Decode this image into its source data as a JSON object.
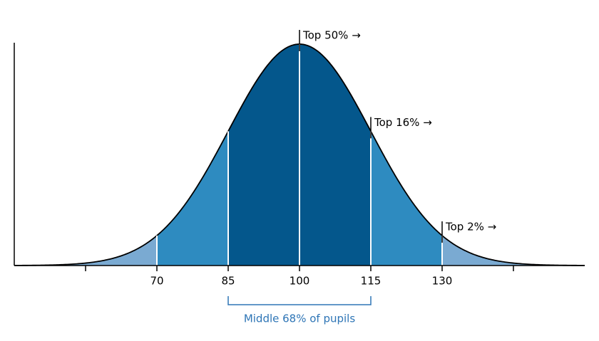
{
  "chart_data": {
    "type": "normal-curve",
    "xlim": [
      40,
      160
    ],
    "xticks": [
      70,
      85,
      100,
      115,
      130
    ],
    "minor_xticks": [
      55,
      145
    ],
    "band_colors": [
      "#7aaad2",
      "#2e8bc0",
      "#04578c",
      "#04578c",
      "#2e8bc0",
      "#7aaad2"
    ],
    "annotations": [
      {
        "x": 100,
        "text": "Top 50% →"
      },
      {
        "x": 115,
        "text": "Top 16% →"
      },
      {
        "x": 130,
        "text": "Top 2% →"
      }
    ],
    "bracket": {
      "from": 85,
      "to": 115,
      "text": "Middle 68% of pupils",
      "color": "#2e75b6"
    }
  }
}
